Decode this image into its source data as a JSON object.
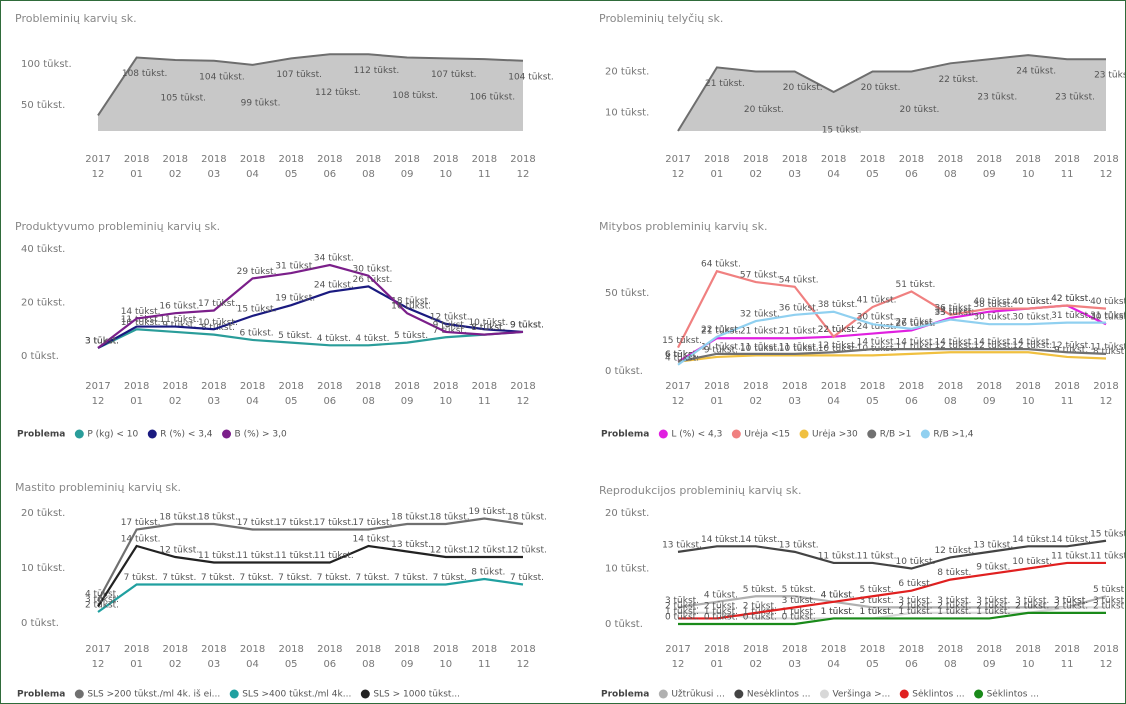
{
  "chart_data": [
    {
      "type": "area",
      "title": "Probleminių karvių sk.",
      "color": "#c8c8c8",
      "line_color": "#6e6e6e",
      "categories": [
        {
          "year": "2017",
          "month": "12"
        },
        {
          "year": "2018",
          "month": "01"
        },
        {
          "year": "2018",
          "month": "02"
        },
        {
          "year": "2018",
          "month": "03"
        },
        {
          "year": "2018",
          "month": "04"
        },
        {
          "year": "2018",
          "month": "05"
        },
        {
          "year": "2018",
          "month": "06"
        },
        {
          "year": "2018",
          "month": "08"
        },
        {
          "year": "2018",
          "month": "09"
        },
        {
          "year": "2018",
          "month": "10"
        },
        {
          "year": "2018",
          "month": "11"
        },
        {
          "year": "2018",
          "month": "12"
        }
      ],
      "values": [
        37000,
        108000,
        105000,
        104000,
        99000,
        107000,
        112000,
        112000,
        108000,
        107000,
        106000,
        104000
      ],
      "value_labels": [
        null,
        "108 tūkst.",
        "105 tūkst.",
        "104 tūkst.",
        "99 tūkst.",
        "107 tūkst.",
        "112 tūkst.",
        "112 tūkst.",
        "108 tūkst.",
        "107 tūkst.",
        "106 tūkst.",
        "104 tūkst."
      ],
      "ylim": [
        18000,
        116000
      ],
      "yticks": [
        {
          "value": 50000,
          "label": "50 tūkst."
        },
        {
          "value": 100000,
          "label": "100 tūkst."
        }
      ]
    },
    {
      "type": "area",
      "title": "Probleminių telyčių sk.",
      "color": "#c8c8c8",
      "line_color": "#6e6e6e",
      "categories": [
        {
          "year": "2017",
          "month": "12"
        },
        {
          "year": "2018",
          "month": "01"
        },
        {
          "year": "2018",
          "month": "02"
        },
        {
          "year": "2018",
          "month": "03"
        },
        {
          "year": "2018",
          "month": "04"
        },
        {
          "year": "2018",
          "month": "05"
        },
        {
          "year": "2018",
          "month": "06"
        },
        {
          "year": "2018",
          "month": "08"
        },
        {
          "year": "2018",
          "month": "09"
        },
        {
          "year": "2018",
          "month": "10"
        },
        {
          "year": "2018",
          "month": "11"
        },
        {
          "year": "2018",
          "month": "12"
        }
      ],
      "values": [
        5500,
        21000,
        20000,
        20000,
        15000,
        20000,
        20000,
        22000,
        23000,
        24000,
        23000,
        23000
      ],
      "value_labels": [
        null,
        "21 tūkst.",
        "20 tūkst.",
        "20 tūkst.",
        "15 tūkst.",
        "20 tūkst.",
        "20 tūkst.",
        "22 tūkst.",
        "23 tūkst.",
        "24 tūkst.",
        "23 tūkst.",
        "23 tūkst."
      ],
      "ylim": [
        5500,
        25000
      ],
      "yticks": [
        {
          "value": 10000,
          "label": "10 tūkst."
        },
        {
          "value": 20000,
          "label": "20 tūkst."
        }
      ]
    },
    {
      "type": "line",
      "title": "Produktyvumo probleminių karvių sk.",
      "legend_title": "Problema",
      "categories": [
        {
          "year": "2017",
          "month": "12"
        },
        {
          "year": "2018",
          "month": "01"
        },
        {
          "year": "2018",
          "month": "02"
        },
        {
          "year": "2018",
          "month": "03"
        },
        {
          "year": "2018",
          "month": "04"
        },
        {
          "year": "2018",
          "month": "05"
        },
        {
          "year": "2018",
          "month": "06"
        },
        {
          "year": "2018",
          "month": "08"
        },
        {
          "year": "2018",
          "month": "09"
        },
        {
          "year": "2018",
          "month": "10"
        },
        {
          "year": "2018",
          "month": "11"
        },
        {
          "year": "2018",
          "month": "12"
        }
      ],
      "series": [
        {
          "name": "P (kg) < 10",
          "color": "#2a9d9a",
          "values": [
            3000,
            10000,
            9000,
            8000,
            6000,
            5000,
            4000,
            4000,
            5000,
            7000,
            8000,
            9000
          ],
          "value_labels": [
            "3 tūkst.",
            "10 tūkst.",
            "9 tūkst.",
            "8 tūkst.",
            "6 tūkst.",
            "5 tūkst.",
            "4 tūkst.",
            "4 tūkst.",
            "5 tūkst.",
            "7 tūkst.",
            "8 tūkst.",
            "9 tūkst."
          ]
        },
        {
          "name": "R (%) < 3,4",
          "color": "#1a1a80",
          "values": [
            3000,
            11000,
            11000,
            10000,
            15000,
            19000,
            24000,
            26000,
            18000,
            12000,
            10000,
            9000
          ],
          "value_labels": [
            "3 tūkst.",
            "11 tūkst.",
            "11 tūkst.",
            "10 tūkst.",
            "15 tūkst.",
            "19 tūkst.",
            "24 tūkst.",
            "26 tūkst.",
            "18 tūkst.",
            "12 tūkst.",
            "10 tūkst.",
            "9 tūkst."
          ]
        },
        {
          "name": "B (%) > 3,0",
          "color": "#7b1f8a",
          "values": [
            3000,
            14000,
            16000,
            17000,
            29000,
            31000,
            34000,
            30000,
            16000,
            9000,
            8000,
            9000
          ],
          "value_labels": [
            "3 tūkst.",
            "14 tūkst.",
            "16 tūkst.",
            "17 tūkst.",
            "29 tūkst.",
            "31 tūkst.",
            "34 tūkst.",
            "30 tūkst.",
            "16 tūkst.",
            "9 tūkst.",
            "8 tūkst.",
            "9 tūkst."
          ]
        }
      ],
      "ylim": [
        0,
        40000
      ],
      "yticks": [
        {
          "value": 0,
          "label": "0 tūkst."
        },
        {
          "value": 20000,
          "label": "20 tūkst."
        },
        {
          "value": 40000,
          "label": "40 tūkst."
        }
      ]
    },
    {
      "type": "line",
      "title": "Mitybos probleminių karvių sk.",
      "legend_title": "Problema",
      "categories": [
        {
          "year": "2017",
          "month": "12"
        },
        {
          "year": "2018",
          "month": "01"
        },
        {
          "year": "2018",
          "month": "02"
        },
        {
          "year": "2018",
          "month": "03"
        },
        {
          "year": "2018",
          "month": "04"
        },
        {
          "year": "2018",
          "month": "05"
        },
        {
          "year": "2018",
          "month": "06"
        },
        {
          "year": "2018",
          "month": "08"
        },
        {
          "year": "2018",
          "month": "09"
        },
        {
          "year": "2018",
          "month": "10"
        },
        {
          "year": "2018",
          "month": "11"
        },
        {
          "year": "2018",
          "month": "12"
        }
      ],
      "series": [
        {
          "name": "L (%) < 4,3",
          "color": "#e020e0",
          "values": [
            6000,
            21000,
            21000,
            21000,
            22000,
            24000,
            26000,
            34000,
            38000,
            40000,
            42000,
            30000
          ],
          "value_labels": [
            "6 tūkst.",
            "21 tūkst.",
            "21 tūkst.",
            "21 tūkst.",
            "22 tūkst.",
            "24 tūkst.",
            "26 tūkst.",
            "34 tūkst.",
            "38 tūkst.",
            "40 tūkst.",
            "42 tūkst.",
            "30 tūkst."
          ]
        },
        {
          "name": "Urėja <15",
          "color": "#f08080",
          "values": [
            15000,
            64000,
            57000,
            54000,
            22000,
            41000,
            51000,
            36000,
            40000,
            40000,
            42000,
            40000
          ],
          "value_labels": [
            "15 tūkst.",
            "64 tūkst.",
            "57 tūkst.",
            "54 tūkst.",
            "22 tūkst.",
            "41 tūkst.",
            "51 tūkst.",
            "36 tūkst.",
            "40 tūkst.",
            "40 tūkst.",
            "42 tūkst.",
            "40 tūkst."
          ]
        },
        {
          "name": "Urėja >30",
          "color": "#f0c040",
          "values": [
            6000,
            9000,
            10000,
            10000,
            10000,
            10000,
            11000,
            12000,
            12000,
            12000,
            9000,
            8000
          ],
          "value_labels": [
            "6 tūkst.",
            "9 tūkst.",
            "10 tūkst.",
            "10 tūkst.",
            "10 tūkst.",
            "10 tūkst.",
            "11 tūkst.",
            "12 tūkst.",
            "12 tūkst.",
            "12 tūkst.",
            "9 tūkst.",
            "8 tūkst."
          ]
        },
        {
          "name": "R/B >1",
          "color": "#707070",
          "values": [
            6000,
            11000,
            11000,
            11000,
            12000,
            14000,
            14000,
            14000,
            14000,
            14000,
            12000,
            11000
          ],
          "value_labels": [
            "6 tūkst.",
            "11 tūkst.",
            "11 tūkst.",
            "11 tūkst.",
            "12 tūkst.",
            "14 tūkst.",
            "14 tūkst.",
            "14 tūkst.",
            "14 tūkst.",
            "14 tūkst.",
            "12 tūkst.",
            "11 tūkst."
          ]
        },
        {
          "name": "R/B >1,4",
          "color": "#90d0f0",
          "values": [
            4000,
            22000,
            32000,
            36000,
            38000,
            30000,
            27000,
            33000,
            30000,
            30000,
            31000,
            31000
          ],
          "value_labels": [
            "4 tūkst.",
            "22 tūkst.",
            "32 tūkst.",
            "36 tūkst.",
            "38 tūkst.",
            "30 tūkst.",
            "27 tūkst.",
            "33 tūkst.",
            "30 tūkst.",
            "30 tūkst.",
            "31 tūkst.",
            "31 tūkst."
          ]
        }
      ],
      "ylim": [
        0,
        75000
      ],
      "yticks": [
        {
          "value": 0,
          "label": "0 tūkst."
        },
        {
          "value": 50000,
          "label": "50 tūkst."
        }
      ]
    },
    {
      "type": "line",
      "title": "Mastito probleminių karvių sk.",
      "legend_title": "Problema",
      "categories": [
        {
          "year": "2017",
          "month": "12"
        },
        {
          "year": "2018",
          "month": "01"
        },
        {
          "year": "2018",
          "month": "02"
        },
        {
          "year": "2018",
          "month": "03"
        },
        {
          "year": "2018",
          "month": "04"
        },
        {
          "year": "2018",
          "month": "05"
        },
        {
          "year": "2018",
          "month": "06"
        },
        {
          "year": "2018",
          "month": "08"
        },
        {
          "year": "2018",
          "month": "09"
        },
        {
          "year": "2018",
          "month": "10"
        },
        {
          "year": "2018",
          "month": "11"
        },
        {
          "year": "2018",
          "month": "12"
        }
      ],
      "series": [
        {
          "name": "SLS >200 tūkst./ml 4k. iš ei...",
          "color": "#707070",
          "values": [
            4000,
            17000,
            18000,
            18000,
            17000,
            17000,
            17000,
            17000,
            18000,
            18000,
            19000,
            18000
          ],
          "value_labels": [
            "4 tūkst.",
            "17 tūkst.",
            "18 tūkst.",
            "18 tūkst.",
            "17 tūkst.",
            "17 tūkst.",
            "17 tūkst.",
            "17 tūkst.",
            "18 tūkst.",
            "18 tūkst.",
            "19 tūkst.",
            "18 tūkst."
          ]
        },
        {
          "name": "SLS >400 tūkst./ml 4k...",
          "color": "#20a0a0",
          "values": [
            2000,
            7000,
            7000,
            7000,
            7000,
            7000,
            7000,
            7000,
            7000,
            7000,
            8000,
            7000
          ],
          "value_labels": [
            "2 tūkst.",
            "7 tūkst.",
            "7 tūkst.",
            "7 tūkst.",
            "7 tūkst.",
            "7 tūkst.",
            "7 tūkst.",
            "7 tūkst.",
            "7 tūkst.",
            "7 tūkst.",
            "8 tūkst.",
            "7 tūkst."
          ]
        },
        {
          "name": "SLS > 1000 tūkst...",
          "color": "#222222",
          "values": [
            3000,
            14000,
            12000,
            11000,
            11000,
            11000,
            11000,
            14000,
            13000,
            12000,
            12000,
            12000
          ],
          "value_labels": [
            "3 tūkst.",
            "14 tūkst.",
            "12 tūkst.",
            "11 tūkst.",
            "11 tūkst.",
            "11 tūkst.",
            "11 tūkst.",
            "14 tūkst.",
            "13 tūkst.",
            "12 tūkst.",
            "12 tūkst.",
            "12 tūkst."
          ]
        }
      ],
      "ylim": [
        0,
        20000
      ],
      "yticks": [
        {
          "value": 0,
          "label": "0 tūkst."
        },
        {
          "value": 10000,
          "label": "10 tūkst."
        },
        {
          "value": 20000,
          "label": "20 tūkst."
        }
      ]
    },
    {
      "type": "line",
      "title": "Reprodukcijos probleminių karvių sk.",
      "legend_title": "Problema",
      "categories": [
        {
          "year": "2017",
          "month": "12"
        },
        {
          "year": "2018",
          "month": "01"
        },
        {
          "year": "2018",
          "month": "02"
        },
        {
          "year": "2018",
          "month": "03"
        },
        {
          "year": "2018",
          "month": "04"
        },
        {
          "year": "2018",
          "month": "05"
        },
        {
          "year": "2018",
          "month": "06"
        },
        {
          "year": "2018",
          "month": "08"
        },
        {
          "year": "2018",
          "month": "09"
        },
        {
          "year": "2018",
          "month": "10"
        },
        {
          "year": "2018",
          "month": "11"
        },
        {
          "year": "2018",
          "month": "12"
        }
      ],
      "series": [
        {
          "name": "Užtrūkusi ...",
          "color": "#b0b0b0",
          "values": [
            3000,
            4000,
            5000,
            5000,
            4000,
            3000,
            3000,
            3000,
            3000,
            3000,
            3000,
            5000
          ],
          "value_labels": [
            "3 tūkst.",
            "4 tūkst.",
            "5 tūkst.",
            "5 tūkst.",
            "4 tūkst.",
            "3 tūkst.",
            "3 tūkst.",
            "3 tūkst.",
            "3 tūkst.",
            "3 tūkst.",
            "3 tūkst.",
            "5 tūkst."
          ]
        },
        {
          "name": "Nesėklintos ...",
          "color": "#444444",
          "values": [
            13000,
            14000,
            14000,
            13000,
            11000,
            11000,
            10000,
            12000,
            13000,
            14000,
            14000,
            15000
          ],
          "value_labels": [
            "13 tūkst.",
            "14 tūkst.",
            "14 tūkst.",
            "13 tūkst.",
            "11 tūkst.",
            "11 tūkst.",
            "10 tūkst.",
            "12 tūkst.",
            "13 tūkst.",
            "14 tūkst.",
            "14 tūkst.",
            "15 tūkst."
          ]
        },
        {
          "name": "Veršinga >...",
          "color": "#d8d8d8",
          "values": [
            2000,
            2000,
            1000,
            1000,
            1000,
            1000,
            2000,
            2000,
            2000,
            2000,
            3000,
            3000
          ],
          "value_labels": [
            "2 tūkst.",
            "2 tūkst.",
            "1 tūkst.",
            "1 tūkst.",
            "1 tūkst.",
            "1 tūkst.",
            "2 tūkst.",
            "2 tūkst.",
            "2 tūkst.",
            "2 tūkst.",
            "3 tūkst.",
            "3 tūkst."
          ]
        },
        {
          "name": "Sėklintos ...",
          "color": "#e02020",
          "values": [
            1000,
            1000,
            2000,
            3000,
            4000,
            5000,
            6000,
            8000,
            9000,
            10000,
            11000,
            11000
          ],
          "value_labels": [
            "1 tūkst.",
            "1 tūkst.",
            "2 tūkst.",
            "3 tūkst.",
            "4 tūkst.",
            "5 tūkst.",
            "6 tūkst.",
            "8 tūkst.",
            "9 tūkst.",
            "10 tūkst.",
            "11 tūkst.",
            "11 tūkst."
          ]
        },
        {
          "name": "Sėklintos ...",
          "color": "#1a8a1a",
          "values": [
            0,
            0,
            0,
            0,
            1000,
            1000,
            1000,
            1000,
            1000,
            2000,
            2000,
            2000
          ],
          "value_labels": [
            "0 tūkst.",
            "0 tūkst.",
            "0 tūkst.",
            "0 tūkst.",
            "1 tūkst.",
            "1 tūkst.",
            "1 tūkst.",
            "1 tūkst.",
            "1 tūkst.",
            "2 tūkst.",
            "2 tūkst.",
            "2 tūkst."
          ]
        }
      ],
      "ylim": [
        0,
        20000
      ],
      "yticks": [
        {
          "value": 0,
          "label": "0 tūkst."
        },
        {
          "value": 10000,
          "label": "10 tūkst."
        },
        {
          "value": 20000,
          "label": "20 tūkst."
        }
      ]
    }
  ]
}
